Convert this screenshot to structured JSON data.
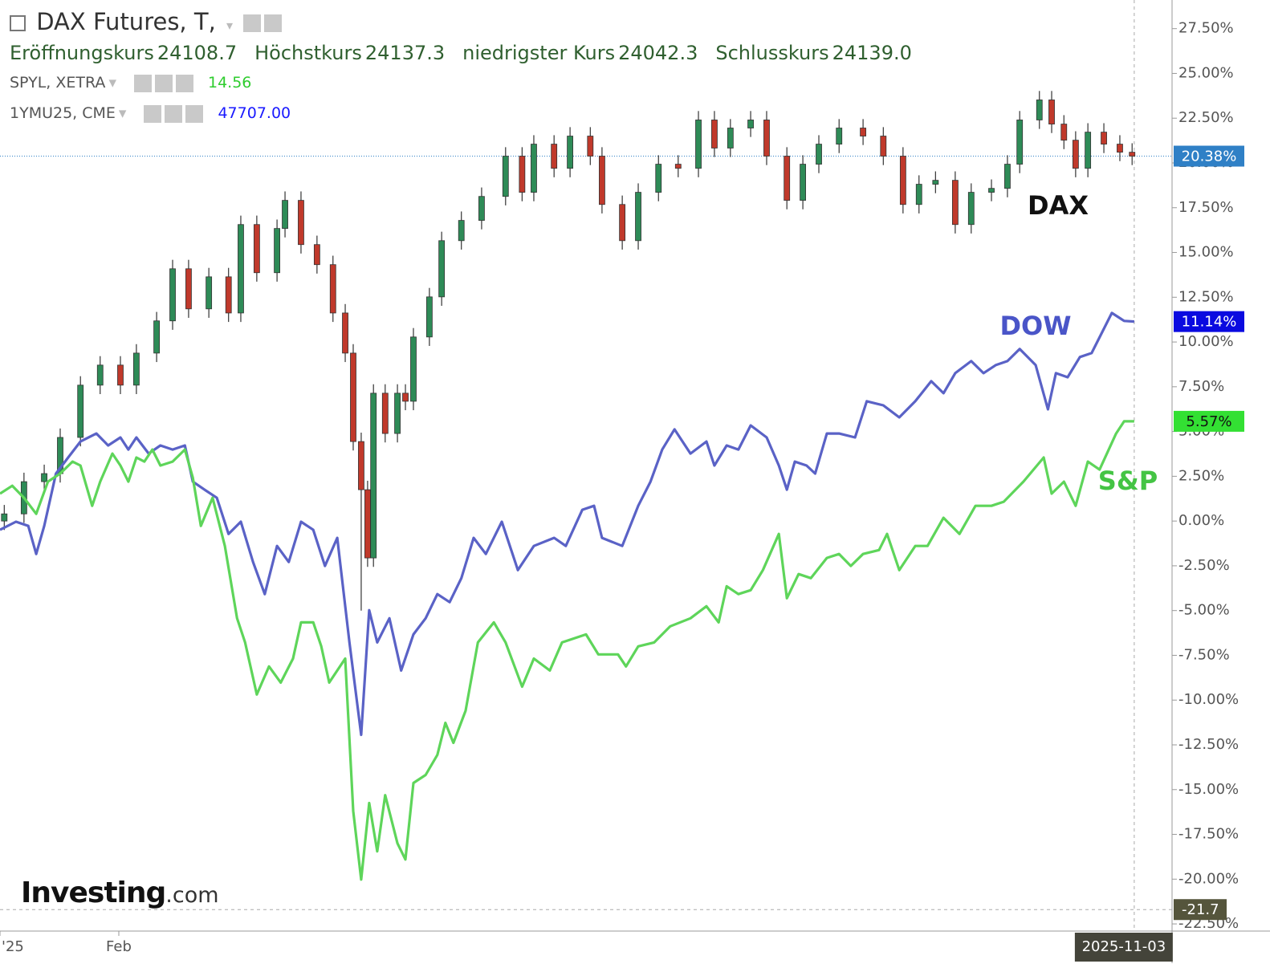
{
  "header": {
    "title": "DAX Futures, T,",
    "fields": [
      {
        "label": "Eröffnungskurs",
        "value": 24108.7
      },
      {
        "label": "Höchstkurs",
        "value": 24137.3
      },
      {
        "label": "niedrigster Kurs",
        "value": 24042.3
      },
      {
        "label": "Schlusskurs",
        "value": {
          "value": 24139,
          "label": "24139.0"
        }
      }
    ],
    "compare": [
      {
        "name": "SPYL, XETRA",
        "value": 14.56,
        "color": "#2ecc2e"
      },
      {
        "name": "1YMU25, CME",
        "value": {
          "value": 47707,
          "label": "47707.00"
        },
        "color": "#1a1aff"
      }
    ],
    "brand": "Investing",
    "brand_suffix": ".com"
  },
  "chart_data": {
    "type": "line",
    "xlim": [
      0,
      220
    ],
    "ylim": [
      -22.9,
      29.1
    ],
    "xticks": [
      {
        "value": 0,
        "label": "'25"
      },
      {
        "value": 22.3,
        "label": "Feb"
      }
    ],
    "yticks": [
      {
        "value": 27.5,
        "label": "27.50%"
      },
      {
        "value": 25,
        "label": "25.00%"
      },
      {
        "value": 22.5,
        "label": "22.50%"
      },
      {
        "value": 20,
        "label": "20.00%"
      },
      {
        "value": 17.5,
        "label": "17.50%"
      },
      {
        "value": 15,
        "label": "15.00%"
      },
      {
        "value": 12.5,
        "label": "12.50%"
      },
      {
        "value": 10,
        "label": "10.00%"
      },
      {
        "value": 7.5,
        "label": "7.50%"
      },
      {
        "value": 5,
        "label": "5.00%"
      },
      {
        "value": 2.5,
        "label": "2.50%"
      },
      {
        "value": 0,
        "label": "0.00%"
      },
      {
        "value": -2.5,
        "label": "-2.50%"
      },
      {
        "value": -5,
        "label": "-5.00%"
      },
      {
        "value": -7.5,
        "label": "-7.50%"
      },
      {
        "value": -10,
        "label": "-10.00%"
      },
      {
        "value": -12.5,
        "label": "-12.50%"
      },
      {
        "value": -15,
        "label": "-15.00%"
      },
      {
        "value": -17.5,
        "label": "-17.50%"
      },
      {
        "value": -20,
        "label": "-20.00%"
      },
      {
        "value": -22.5,
        "label": "-22.50%"
      }
    ],
    "crosshair": {
      "x": {
        "value": 212.9,
        "label": "2025-11-03"
      },
      "y": -21.7
    },
    "series": [
      {
        "name": "DAX",
        "type": "candlestick",
        "color": "#2e8b57",
        "color_down": "#c0392b",
        "badge_color": "#2f80c6",
        "last": {
          "value": 20.38,
          "label": "20.38%"
        },
        "x": [
          0.8,
          4.5,
          8.3,
          11.3,
          15.1,
          18.8,
          22.6,
          25.6,
          29.4,
          32.4,
          35.4,
          39.2,
          42.9,
          45.2,
          48.2,
          52.0,
          53.5,
          56.5,
          59.5,
          62.5,
          64.8,
          66.3,
          67.8,
          69.0,
          70.1,
          72.3,
          74.6,
          76.1,
          77.6,
          80.6,
          82.9,
          86.6,
          90.4,
          94.9,
          98.0,
          100.2,
          104.0,
          107.0,
          110.8,
          113.0,
          116.8,
          119.8,
          123.6,
          127.3,
          131.1,
          134.1,
          137.1,
          140.9,
          143.9,
          147.7,
          150.7,
          153.7,
          157.5,
          162.0,
          165.8,
          169.5,
          172.5,
          175.6,
          179.3,
          182.3,
          186.1,
          189.1,
          191.4,
          195.1,
          197.4,
          199.7,
          201.9,
          204.2,
          207.2,
          210.2,
          212.5
        ],
        "open": [
          0,
          0.4,
          2.2,
          2.65,
          4.67,
          7.59,
          8.71,
          7.59,
          9.38,
          11.18,
          14.09,
          11.85,
          13.64,
          11.62,
          16.56,
          13.87,
          16.34,
          17.91,
          15.44,
          14.32,
          11.62,
          9.38,
          4.44,
          1.75,
          -2.06,
          7.14,
          4.89,
          7.14,
          6.69,
          10.28,
          12.52,
          15.66,
          16.79,
          18.13,
          20.38,
          18.36,
          21.05,
          19.7,
          21.5,
          20.38,
          17.68,
          15.66,
          18.36,
          19.93,
          19.7,
          22.4,
          20.83,
          21.95,
          22.4,
          20.38,
          17.91,
          19.93,
          21.05,
          21.95,
          21.5,
          20.38,
          17.68,
          18.81,
          19.03,
          16.56,
          18.36,
          18.58,
          19.93,
          22.4,
          23.52,
          22.17,
          21.27,
          19.7,
          21.72,
          21.05,
          20.6
        ],
        "high": [
          0.9,
          2.7,
          3.15,
          5.17,
          8.09,
          9.21,
          9.21,
          9.88,
          11.68,
          14.59,
          14.59,
          14.14,
          14.14,
          17.06,
          17.06,
          16.84,
          18.41,
          18.41,
          15.94,
          14.82,
          12.12,
          9.88,
          4.94,
          2.25,
          7.64,
          7.64,
          7.64,
          7.64,
          10.78,
          13.02,
          16.16,
          17.29,
          18.63,
          20.88,
          20.88,
          21.55,
          21.55,
          22.0,
          22.0,
          20.88,
          18.18,
          18.86,
          20.43,
          20.43,
          22.9,
          22.9,
          22.45,
          22.9,
          22.9,
          20.88,
          20.43,
          21.55,
          22.45,
          22.45,
          22.0,
          20.88,
          19.31,
          19.53,
          19.53,
          18.86,
          19.08,
          20.43,
          22.9,
          24.02,
          24.02,
          22.67,
          21.77,
          22.22,
          22.22,
          21.55,
          21.1
        ],
        "low": [
          -0.5,
          -0.1,
          1.7,
          2.15,
          4.17,
          7.09,
          7.09,
          7.09,
          8.88,
          10.68,
          11.35,
          11.35,
          11.12,
          11.12,
          13.37,
          13.37,
          15.84,
          14.94,
          13.82,
          11.12,
          8.88,
          3.94,
          -5.0,
          -2.56,
          -2.56,
          4.39,
          4.39,
          6.19,
          6.19,
          9.78,
          12.02,
          15.16,
          16.29,
          17.63,
          17.86,
          17.86,
          19.2,
          19.2,
          19.88,
          17.18,
          15.16,
          15.16,
          17.86,
          19.2,
          19.2,
          20.33,
          20.33,
          21.45,
          19.88,
          17.41,
          17.41,
          19.43,
          20.55,
          21.0,
          19.88,
          17.18,
          17.18,
          18.31,
          16.06,
          16.06,
          17.86,
          18.08,
          19.43,
          21.9,
          21.67,
          20.77,
          19.2,
          19.2,
          20.55,
          20.1,
          19.88
        ],
        "close": [
          0.4,
          2.2,
          2.65,
          4.67,
          7.59,
          8.71,
          7.59,
          9.38,
          11.18,
          14.09,
          11.85,
          13.64,
          11.62,
          16.56,
          13.87,
          16.34,
          17.91,
          15.44,
          14.32,
          11.62,
          9.38,
          4.44,
          1.75,
          -2.06,
          7.14,
          4.89,
          7.14,
          6.69,
          10.28,
          12.52,
          15.66,
          16.79,
          18.13,
          20.38,
          18.36,
          21.05,
          19.7,
          21.5,
          20.38,
          17.68,
          15.66,
          18.36,
          19.93,
          19.7,
          22.4,
          20.83,
          21.95,
          22.4,
          20.38,
          17.91,
          19.93,
          21.05,
          21.95,
          21.5,
          20.38,
          17.68,
          18.81,
          19.03,
          16.56,
          18.36,
          18.58,
          19.93,
          22.4,
          23.52,
          22.17,
          21.27,
          19.7,
          21.72,
          21.05,
          20.6,
          20.38
        ]
      },
      {
        "name": "DOW",
        "type": "line",
        "color": "#5a62c6",
        "badge_color": "#0a0ae0",
        "last": {
          "value": 11.14,
          "label": "11.14%"
        },
        "x": [
          0,
          3.0,
          5.3,
          6.8,
          8.3,
          10.5,
          12.8,
          15.1,
          18.1,
          20.3,
          22.6,
          24.1,
          25.6,
          27.9,
          30.1,
          32.4,
          34.7,
          36.2,
          38.4,
          40.7,
          42.9,
          45.2,
          47.5,
          49.7,
          52.0,
          54.2,
          56.5,
          58.8,
          61.0,
          63.3,
          65.6,
          67.8,
          69.3,
          70.8,
          73.1,
          75.3,
          77.6,
          79.9,
          82.1,
          84.4,
          86.6,
          88.9,
          91.2,
          94.2,
          97.2,
          100.2,
          104.0,
          106.2,
          109.3,
          111.5,
          113.0,
          116.8,
          119.8,
          122.1,
          124.3,
          126.6,
          129.6,
          132.6,
          134.1,
          136.4,
          138.6,
          140.9,
          143.9,
          146.2,
          147.7,
          149.2,
          151.4,
          153.0,
          155.2,
          157.5,
          160.5,
          162.7,
          165.8,
          168.8,
          171.8,
          174.8,
          177.1,
          179.3,
          182.3,
          184.6,
          186.9,
          189.1,
          191.4,
          194.4,
          196.7,
          198.2,
          200.4,
          202.7,
          204.9,
          208.7,
          211.0,
          212.9
        ],
        "values": [
          -0.49,
          -0.04,
          -0.27,
          -1.84,
          -0.27,
          2.65,
          3.55,
          4.44,
          4.89,
          4.22,
          4.67,
          3.99,
          4.67,
          3.77,
          4.22,
          3.99,
          4.22,
          2.2,
          1.75,
          1.3,
          -0.72,
          -0.04,
          -2.29,
          -4.08,
          -1.39,
          -2.29,
          -0.04,
          -0.49,
          -2.51,
          -0.94,
          -6.78,
          -11.94,
          -4.98,
          -6.78,
          -5.43,
          -8.35,
          -6.33,
          -5.43,
          -4.08,
          -4.53,
          -3.19,
          -0.94,
          -1.84,
          -0.04,
          -2.74,
          -1.39,
          -0.94,
          -1.39,
          0.63,
          0.85,
          -0.94,
          -1.39,
          0.85,
          2.2,
          3.99,
          5.12,
          3.77,
          4.44,
          3.1,
          4.22,
          3.99,
          5.34,
          4.67,
          3.1,
          1.75,
          3.32,
          3.1,
          2.65,
          4.89,
          4.89,
          4.67,
          6.69,
          6.46,
          5.79,
          6.69,
          7.81,
          7.14,
          8.26,
          8.93,
          8.26,
          8.71,
          8.93,
          9.61,
          8.71,
          6.24,
          8.26,
          8.03,
          9.16,
          9.38,
          11.62,
          11.18,
          11.14
        ]
      },
      {
        "name": "S&P",
        "type": "line",
        "color": "#5ed55a",
        "badge_color": "#33e033",
        "last": {
          "value": 5.57,
          "label": "5.57%"
        },
        "x": [
          0,
          2.3,
          4.5,
          6.8,
          9.0,
          11.3,
          13.6,
          15.1,
          17.3,
          18.8,
          21.1,
          22.6,
          24.1,
          25.6,
          27.1,
          28.6,
          30.1,
          32.4,
          34.7,
          36.2,
          37.7,
          39.9,
          42.2,
          44.5,
          46.0,
          48.2,
          50.5,
          52.7,
          55.0,
          56.5,
          58.8,
          60.3,
          61.8,
          64.8,
          66.3,
          67.8,
          69.3,
          70.8,
          72.3,
          74.6,
          76.1,
          77.6,
          79.9,
          82.1,
          83.6,
          85.1,
          87.4,
          89.7,
          92.7,
          94.9,
          98.0,
          100.2,
          103.2,
          105.5,
          110.0,
          112.3,
          116.0,
          117.5,
          119.8,
          122.8,
          125.8,
          129.6,
          132.6,
          134.9,
          136.4,
          138.6,
          140.9,
          143.2,
          146.2,
          147.7,
          149.9,
          152.2,
          155.2,
          157.5,
          159.7,
          162.0,
          165.0,
          166.5,
          168.8,
          171.8,
          174.1,
          177.1,
          180.1,
          183.1,
          186.1,
          188.4,
          192.1,
          195.9,
          197.4,
          199.7,
          201.9,
          204.2,
          206.4,
          209.5,
          211.0,
          212.9
        ],
        "values": [
          1.53,
          1.97,
          1.3,
          0.4,
          2.2,
          2.65,
          3.32,
          3.1,
          0.85,
          2.2,
          3.77,
          3.1,
          2.2,
          3.55,
          3.32,
          3.99,
          3.1,
          3.32,
          3.99,
          2.42,
          -0.27,
          1.3,
          -1.39,
          -5.43,
          -6.78,
          -9.69,
          -8.12,
          -9.02,
          -7.68,
          -5.66,
          -5.66,
          -7.0,
          -9.02,
          -7.68,
          -16.2,
          -20.02,
          -15.75,
          -18.45,
          -15.31,
          -18.0,
          -18.9,
          -14.63,
          -14.18,
          -13.06,
          -11.27,
          -12.39,
          -10.59,
          -6.78,
          -5.66,
          -6.78,
          -9.25,
          -7.68,
          -8.35,
          -6.78,
          -6.33,
          -7.45,
          -7.45,
          -8.12,
          -7.0,
          -6.78,
          -5.88,
          -5.43,
          -4.76,
          -5.66,
          -3.64,
          -4.08,
          -3.86,
          -2.74,
          -0.72,
          -4.31,
          -2.96,
          -3.19,
          -2.06,
          -1.84,
          -2.51,
          -1.84,
          -1.62,
          -0.72,
          -2.74,
          -1.39,
          -1.39,
          0.18,
          -0.72,
          0.85,
          0.85,
          1.08,
          2.2,
          3.55,
          1.53,
          2.2,
          0.85,
          3.32,
          2.87,
          4.89,
          5.57,
          5.57
        ]
      }
    ]
  }
}
